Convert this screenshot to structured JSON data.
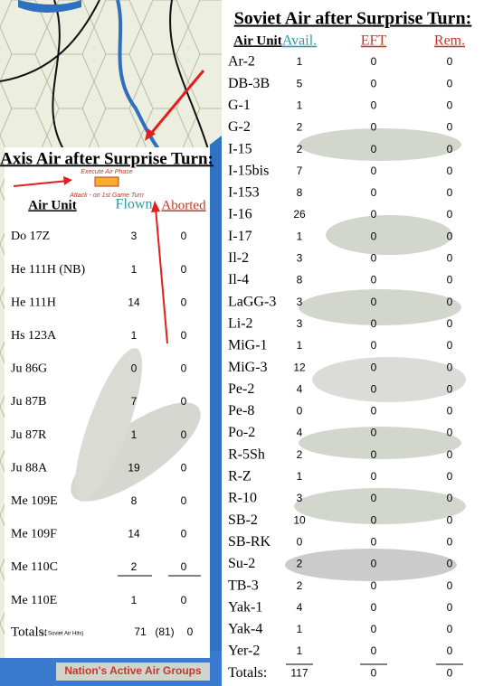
{
  "axis_table": {
    "title": "Axis Air after Surprise Turn:",
    "notes": [
      "Execute Air Phase",
      "Attack - on 1st Game Turn"
    ],
    "headers": [
      "Air Unit",
      "Flown",
      "Aborted"
    ],
    "rows": [
      [
        "Do 17Z",
        3,
        0
      ],
      [
        "He 111H (NB)",
        1,
        0
      ],
      [
        "He 111H",
        14,
        0
      ],
      [
        "Hs 123A",
        1,
        0
      ],
      [
        "Ju 86G",
        0,
        0
      ],
      [
        "Ju 87B",
        7,
        0
      ],
      [
        "Ju 87R",
        1,
        0
      ],
      [
        "Ju 88A",
        19,
        0
      ],
      [
        "Me 109E",
        8,
        0
      ],
      [
        "Me 109F",
        14,
        0
      ],
      [
        "Me 110C",
        2,
        0
      ],
      [
        "Me 110E",
        1,
        0
      ]
    ],
    "totals": {
      "label": "Totals:",
      "note": "(# Soviet Air Hits)",
      "flown": 71,
      "flown_alt": "(81)",
      "aborted": 0
    }
  },
  "soviet_table": {
    "title": "Soviet Air after Surprise Turn:",
    "headers": [
      "Air Unit",
      "Avail.",
      "EFT",
      "Rem."
    ],
    "rows": [
      [
        "Ar-2",
        1,
        0,
        0
      ],
      [
        "DB-3B",
        5,
        0,
        0
      ],
      [
        "G-1",
        1,
        0,
        0
      ],
      [
        "G-2",
        2,
        0,
        0
      ],
      [
        "I-15",
        2,
        0,
        0
      ],
      [
        "I-15bis",
        7,
        0,
        0
      ],
      [
        "I-153",
        8,
        0,
        0
      ],
      [
        "I-16",
        26,
        0,
        0
      ],
      [
        "I-17",
        1,
        0,
        0
      ],
      [
        "Il-2",
        3,
        0,
        0
      ],
      [
        "Il-4",
        8,
        0,
        0
      ],
      [
        "LaGG-3",
        3,
        0,
        0
      ],
      [
        "Li-2",
        3,
        0,
        0
      ],
      [
        "MiG-1",
        1,
        0,
        0
      ],
      [
        "MiG-3",
        12,
        0,
        0
      ],
      [
        "Pe-2",
        4,
        0,
        0
      ],
      [
        "Pe-8",
        0,
        0,
        0
      ],
      [
        "Po-2",
        4,
        0,
        0
      ],
      [
        "R-5Sh",
        2,
        0,
        0
      ],
      [
        "R-Z",
        1,
        0,
        0
      ],
      [
        "R-10",
        3,
        0,
        0
      ],
      [
        "SB-2",
        10,
        0,
        0
      ],
      [
        "SB-RK",
        0,
        0,
        0
      ],
      [
        "Su-2",
        2,
        0,
        0
      ],
      [
        "TB-3",
        2,
        0,
        0
      ],
      [
        "Yak-1",
        4,
        0,
        0
      ],
      [
        "Yak-4",
        1,
        0,
        0
      ],
      [
        "Yer-2",
        1,
        0,
        0
      ]
    ],
    "totals": [
      "Totals:",
      117,
      0,
      0
    ]
  },
  "map_label": "Nation's Active Air Groups"
}
